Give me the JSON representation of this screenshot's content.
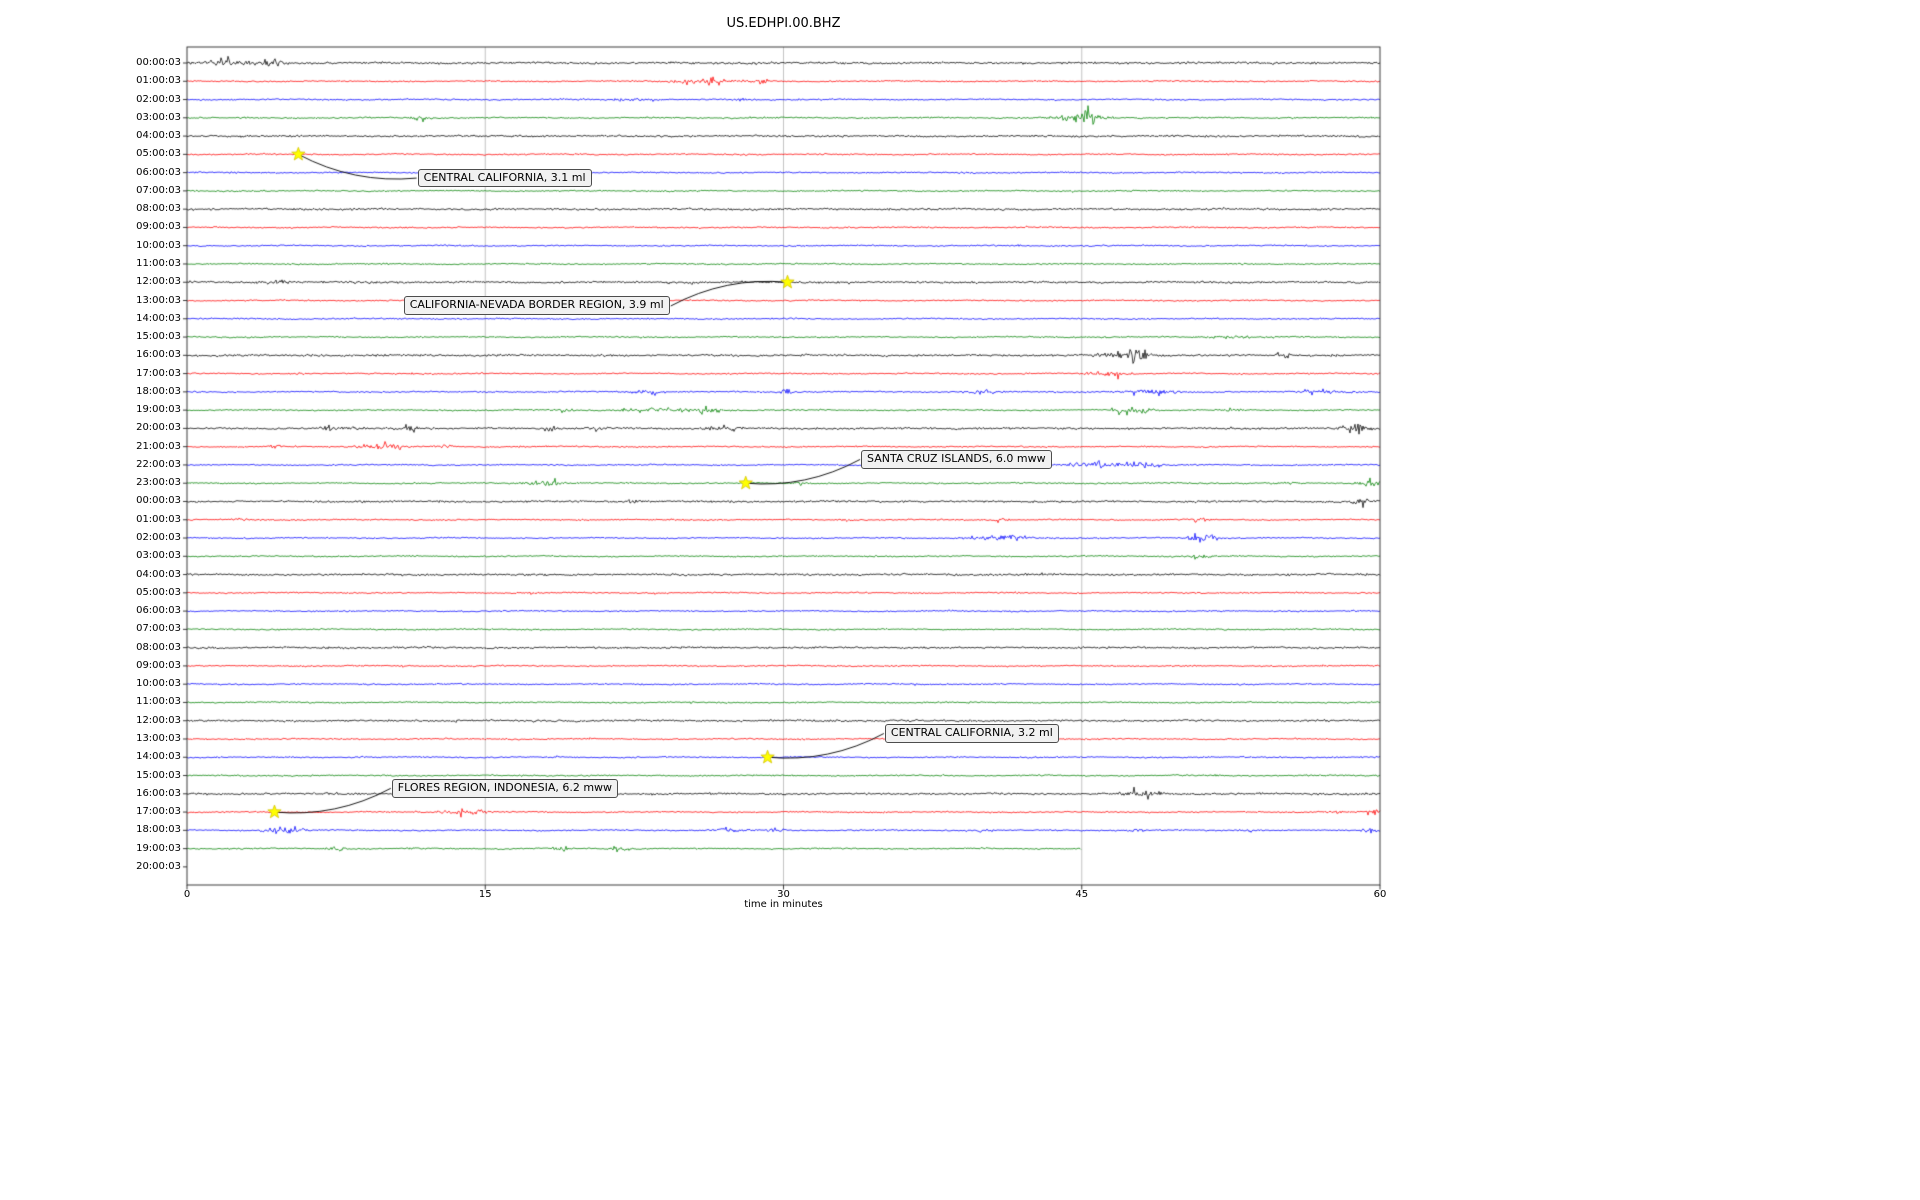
{
  "chart_data": {
    "type": "line",
    "title": "US.EDHPI.00.BHZ",
    "xlabel": "time in minutes",
    "xlim": [
      0,
      60
    ],
    "xticks": [
      0,
      15,
      30,
      45,
      60
    ],
    "grid": "vertical gridlines at 15-minute intervals",
    "legend_position": "none",
    "colors": {
      "black": "#000000",
      "red": "#ff0000",
      "blue": "#0000ff",
      "green": "#008000",
      "star": "#ffff00",
      "star_edge": "#d4c400",
      "grid": "#b4b4b4",
      "axis": "#262626"
    },
    "rows": [
      {
        "time": "00:00:03",
        "color": "black",
        "amp": 1.5,
        "bursts": [
          {
            "m": 2.2,
            "w": 1.6,
            "a": 2.2
          },
          {
            "m": 4.3,
            "w": 0.4,
            "a": 3
          }
        ]
      },
      {
        "time": "01:00:03",
        "color": "red",
        "amp": 1.0,
        "bursts": [
          {
            "m": 26,
            "w": 1.8,
            "a": 2.2
          },
          {
            "m": 28.8,
            "w": 0.35,
            "a": 5
          }
        ]
      },
      {
        "time": "02:00:03",
        "color": "blue",
        "amp": 1.0,
        "bursts": [
          {
            "m": 22.3,
            "w": 0.8,
            "a": 1.8
          },
          {
            "m": 27.9,
            "w": 0.3,
            "a": 2.5
          }
        ]
      },
      {
        "time": "03:00:03",
        "color": "green",
        "amp": 1.0,
        "bursts": [
          {
            "m": 11.8,
            "w": 0.5,
            "a": 2.4
          },
          {
            "m": 44.8,
            "w": 1.4,
            "a": 4
          },
          {
            "m": 45.3,
            "w": 0.35,
            "a": 8
          }
        ]
      },
      {
        "time": "04:00:03",
        "color": "black",
        "amp": 1.4,
        "bursts": []
      },
      {
        "time": "05:00:03",
        "color": "red",
        "amp": 1.0,
        "bursts": []
      },
      {
        "time": "06:00:03",
        "color": "blue",
        "amp": 1.0,
        "bursts": []
      },
      {
        "time": "07:00:03",
        "color": "green",
        "amp": 1.0,
        "bursts": []
      },
      {
        "time": "08:00:03",
        "color": "black",
        "amp": 1.4,
        "bursts": []
      },
      {
        "time": "09:00:03",
        "color": "red",
        "amp": 1.0,
        "bursts": []
      },
      {
        "time": "10:00:03",
        "color": "blue",
        "amp": 1.0,
        "bursts": []
      },
      {
        "time": "11:00:03",
        "color": "green",
        "amp": 1.0,
        "bursts": []
      },
      {
        "time": "12:00:03",
        "color": "black",
        "amp": 1.4,
        "bursts": [
          {
            "m": 4.5,
            "w": 0.6,
            "a": 1.5
          }
        ]
      },
      {
        "time": "13:00:03",
        "color": "red",
        "amp": 1.0,
        "bursts": []
      },
      {
        "time": "14:00:03",
        "color": "blue",
        "amp": 1.0,
        "bursts": []
      },
      {
        "time": "15:00:03",
        "color": "green",
        "amp": 1.0,
        "bursts": [
          {
            "m": 52.3,
            "w": 1.2,
            "a": 1.6
          }
        ]
      },
      {
        "time": "16:00:03",
        "color": "black",
        "amp": 1.4,
        "bursts": [
          {
            "m": 46.6,
            "w": 0.8,
            "a": 2.5
          },
          {
            "m": 47.9,
            "w": 0.5,
            "a": 4.5
          },
          {
            "m": 55.2,
            "w": 0.4,
            "a": 1.5
          }
        ]
      },
      {
        "time": "17:00:03",
        "color": "red",
        "amp": 1.0,
        "bursts": [
          {
            "m": 46.4,
            "w": 0.9,
            "a": 3.2
          }
        ]
      },
      {
        "time": "18:00:03",
        "color": "blue",
        "amp": 1.0,
        "bursts": [
          {
            "m": 23.3,
            "w": 1.2,
            "a": 2
          },
          {
            "m": 30.1,
            "w": 0.25,
            "a": 5
          },
          {
            "m": 40,
            "w": 0.8,
            "a": 1.8
          },
          {
            "m": 48.5,
            "w": 1.5,
            "a": 2.2
          },
          {
            "m": 57,
            "w": 1.2,
            "a": 1.8
          }
        ]
      },
      {
        "time": "19:00:03",
        "color": "green",
        "amp": 1.0,
        "bursts": [
          {
            "m": 19,
            "w": 0.5,
            "a": 1.6
          },
          {
            "m": 23.5,
            "w": 2,
            "a": 1.8
          },
          {
            "m": 26.2,
            "w": 0.6,
            "a": 3
          },
          {
            "m": 47.5,
            "w": 0.8,
            "a": 5
          },
          {
            "m": 52.5,
            "w": 0.4,
            "a": 1.6
          }
        ]
      },
      {
        "time": "20:00:03",
        "color": "black",
        "amp": 1.4,
        "bursts": [
          {
            "m": 7.2,
            "w": 0.4,
            "a": 3
          },
          {
            "m": 8.4,
            "w": 0.4,
            "a": 2
          },
          {
            "m": 11.2,
            "w": 0.4,
            "a": 2.8
          },
          {
            "m": 18.3,
            "w": 0.5,
            "a": 1.8
          },
          {
            "m": 20.6,
            "w": 0.4,
            "a": 2
          },
          {
            "m": 27,
            "w": 0.7,
            "a": 2.5
          },
          {
            "m": 58.8,
            "w": 0.8,
            "a": 2.5
          }
        ]
      },
      {
        "time": "21:00:03",
        "color": "red",
        "amp": 1.0,
        "bursts": [
          {
            "m": 4.4,
            "w": 0.3,
            "a": 2.5
          },
          {
            "m": 9.8,
            "w": 1.2,
            "a": 3
          },
          {
            "m": 13,
            "w": 0.4,
            "a": 2.2
          }
        ]
      },
      {
        "time": "22:00:03",
        "color": "blue",
        "amp": 1.0,
        "bursts": [
          {
            "m": 46.2,
            "w": 1.6,
            "a": 3.2
          },
          {
            "m": 48.3,
            "w": 0.6,
            "a": 2.5
          }
        ]
      },
      {
        "time": "23:00:03",
        "color": "green",
        "amp": 1.0,
        "bursts": [
          {
            "m": 17.5,
            "w": 0.8,
            "a": 2.2
          },
          {
            "m": 18.6,
            "w": 0.3,
            "a": 3
          },
          {
            "m": 30.8,
            "w": 0.3,
            "a": 3.5
          },
          {
            "m": 55.6,
            "w": 0.4,
            "a": 1.6
          },
          {
            "m": 59.5,
            "w": 0.8,
            "a": 2.5
          }
        ]
      },
      {
        "time": "00:00:03",
        "color": "black",
        "amp": 1.4,
        "bursts": [
          {
            "m": 22.4,
            "w": 0.3,
            "a": 3
          },
          {
            "m": 59,
            "w": 0.5,
            "a": 2.2
          }
        ]
      },
      {
        "time": "01:00:03",
        "color": "red",
        "amp": 1.0,
        "bursts": [
          {
            "m": 2.7,
            "w": 0.3,
            "a": 2.2
          },
          {
            "m": 33,
            "w": 0.3,
            "a": 1.6
          },
          {
            "m": 41,
            "w": 0.3,
            "a": 2.5
          },
          {
            "m": 51,
            "w": 0.3,
            "a": 2.5
          }
        ]
      },
      {
        "time": "02:00:03",
        "color": "blue",
        "amp": 1.0,
        "bursts": [
          {
            "m": 40.8,
            "w": 1.2,
            "a": 3.5
          },
          {
            "m": 51.1,
            "w": 0.6,
            "a": 7
          }
        ]
      },
      {
        "time": "03:00:03",
        "color": "green",
        "amp": 1.0,
        "bursts": [
          {
            "m": 51,
            "w": 0.6,
            "a": 2
          }
        ]
      },
      {
        "time": "04:00:03",
        "color": "black",
        "amp": 1.4,
        "bursts": []
      },
      {
        "time": "05:00:03",
        "color": "red",
        "amp": 1.0,
        "bursts": []
      },
      {
        "time": "06:00:03",
        "color": "blue",
        "amp": 1.0,
        "bursts": []
      },
      {
        "time": "07:00:03",
        "color": "green",
        "amp": 1.0,
        "bursts": []
      },
      {
        "time": "08:00:03",
        "color": "black",
        "amp": 1.4,
        "bursts": []
      },
      {
        "time": "09:00:03",
        "color": "red",
        "amp": 1.0,
        "bursts": []
      },
      {
        "time": "10:00:03",
        "color": "blue",
        "amp": 1.0,
        "bursts": []
      },
      {
        "time": "11:00:03",
        "color": "green",
        "amp": 1.0,
        "bursts": []
      },
      {
        "time": "12:00:03",
        "color": "black",
        "amp": 1.4,
        "bursts": []
      },
      {
        "time": "13:00:03",
        "color": "red",
        "amp": 1.0,
        "bursts": []
      },
      {
        "time": "14:00:03",
        "color": "blue",
        "amp": 1.0,
        "bursts": []
      },
      {
        "time": "15:00:03",
        "color": "green",
        "amp": 1.0,
        "bursts": []
      },
      {
        "time": "16:00:03",
        "color": "black",
        "amp": 1.4,
        "bursts": [
          {
            "m": 48,
            "w": 0.9,
            "a": 3.2
          }
        ]
      },
      {
        "time": "17:00:03",
        "color": "red",
        "amp": 1.0,
        "bursts": [
          {
            "m": 13.8,
            "w": 1.2,
            "a": 2.2
          },
          {
            "m": 14.8,
            "w": 0.4,
            "a": 2.6
          },
          {
            "m": 57.8,
            "w": 0.3,
            "a": 3
          },
          {
            "m": 59.7,
            "w": 0.3,
            "a": 3.5
          }
        ]
      },
      {
        "time": "18:00:03",
        "color": "blue",
        "amp": 1.0,
        "bursts": [
          {
            "m": 4.9,
            "w": 0.9,
            "a": 3.5
          },
          {
            "m": 27.2,
            "w": 0.8,
            "a": 2.5
          },
          {
            "m": 29.5,
            "w": 0.4,
            "a": 2
          },
          {
            "m": 40,
            "w": 0.5,
            "a": 1.8
          },
          {
            "m": 47.8,
            "w": 0.5,
            "a": 2
          },
          {
            "m": 53.5,
            "w": 0.4,
            "a": 1.8
          },
          {
            "m": 59.6,
            "w": 0.4,
            "a": 3.5
          }
        ]
      },
      {
        "time": "19:00:03",
        "color": "green",
        "amp": 1.0,
        "end": 45,
        "bursts": [
          {
            "m": 7.5,
            "w": 0.4,
            "a": 3
          },
          {
            "m": 18.8,
            "w": 0.4,
            "a": 3
          },
          {
            "m": 21.8,
            "w": 0.5,
            "a": 1.8
          }
        ]
      },
      {
        "time": "20:00:03",
        "color": null,
        "end": 0,
        "bursts": []
      }
    ],
    "events": [
      {
        "label": "CENTRAL CALIFORNIA, 3.1 ml",
        "star_row": 5,
        "star_minute": 5.6,
        "box_row": 6.3,
        "box_minute": 11.6,
        "attach": "left"
      },
      {
        "label": "CALIFORNIA-NEVADA BORDER REGION, 3.9 ml",
        "star_row": 12,
        "star_minute": 30.2,
        "box_row": 13.3,
        "box_minute": 10.9,
        "attach": "right"
      },
      {
        "label": "SANTA CRUZ ISLANDS, 6.0 mww",
        "star_row": 23,
        "star_minute": 28.1,
        "box_row": 21.7,
        "box_minute": 33.9,
        "attach": "left"
      },
      {
        "label": "CENTRAL CALIFORNIA, 3.2 ml",
        "star_row": 38,
        "star_minute": 29.2,
        "box_row": 36.7,
        "box_minute": 35.1,
        "attach": "left"
      },
      {
        "label": "FLORES REGION, INDONESIA, 6.2 mww",
        "star_row": 41,
        "star_minute": 4.4,
        "box_row": 39.7,
        "box_minute": 10.3,
        "attach": "left"
      }
    ]
  }
}
